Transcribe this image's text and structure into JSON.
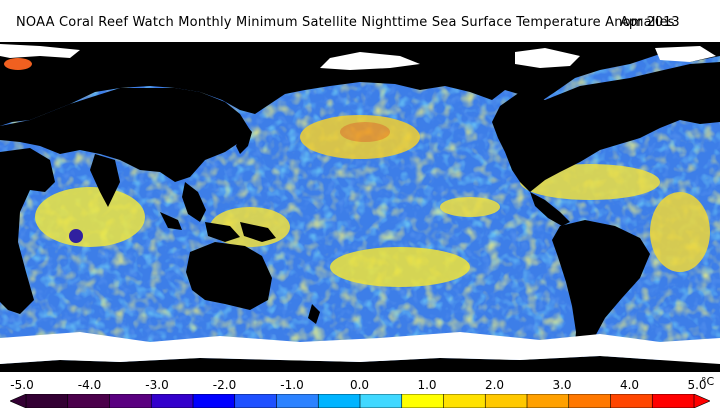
{
  "title": {
    "text": "NOAA Coral Reef Watch Monthly Minimum Satellite Nighttime Sea Surface Temperature Anomalies",
    "date": "Apr 2013"
  },
  "legend": {
    "ticks": [
      "-5.0",
      "-4.0",
      "-3.0",
      "-2.0",
      "-1.0",
      "0.0",
      "1.0",
      "2.0",
      "3.0",
      "4.0",
      "5.0"
    ],
    "unit": "°C",
    "colors": [
      "#330033",
      "#4b004b",
      "#5a0080",
      "#3300cc",
      "#0000ff",
      "#1e50ff",
      "#2c82ff",
      "#00b4ff",
      "#40d8ff",
      "#ffff00",
      "#ffe100",
      "#ffc800",
      "#ffa000",
      "#ff7800",
      "#ff4600",
      "#ff0000"
    ]
  },
  "map_colors": {
    "ocean_base": "#3d7ee8",
    "land": "#000000",
    "ice": "#ffffff",
    "cold": "#2a3cd8",
    "neutral": "#36b8f0",
    "warm": "#f2e830",
    "hot": "#f59a1e"
  }
}
